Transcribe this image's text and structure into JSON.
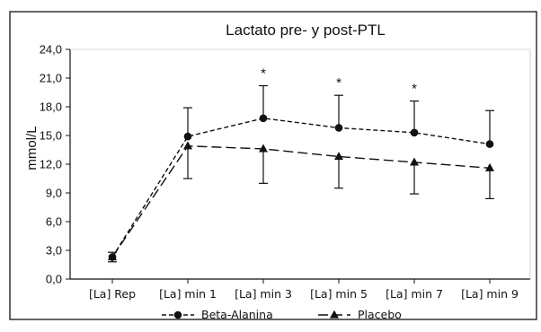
{
  "chart_data": {
    "type": "line",
    "title": "Lactato pre- y post-PTL",
    "xlabel": "",
    "ylabel": "mmol/L",
    "ylim": [
      0,
      24
    ],
    "ytick_step": 3,
    "ytick_labels": [
      "0,0",
      "3,0",
      "6,0",
      "9,0",
      "12,0",
      "15,0",
      "18,0",
      "21,0",
      "24,0"
    ],
    "categories": [
      "[La] Rep",
      "[La] min 1",
      "[La] min 3",
      "[La] min 5",
      "[La] min 7",
      "[La] min 9"
    ],
    "series": [
      {
        "name": "Beta-Alanina",
        "marker": "circle",
        "line_style": "short-dash",
        "color": "#111111",
        "values": [
          2.3,
          14.9,
          16.8,
          15.8,
          15.3,
          14.1
        ],
        "error_upper": [
          2.8,
          17.9,
          20.2,
          19.2,
          18.6,
          17.6
        ]
      },
      {
        "name": "Placebo",
        "marker": "triangle",
        "line_style": "long-dash",
        "color": "#111111",
        "values": [
          2.3,
          13.9,
          13.6,
          12.8,
          12.2,
          11.6
        ],
        "error_lower": [
          1.8,
          10.5,
          10.0,
          9.5,
          8.9,
          8.4
        ]
      }
    ],
    "significance_marks": [
      {
        "category": "[La] min 3",
        "label": "*"
      },
      {
        "category": "[La] min 5",
        "label": "*"
      },
      {
        "category": "[La] min 7",
        "label": "*"
      }
    ],
    "legend_position": "bottom-center",
    "grid": false
  }
}
